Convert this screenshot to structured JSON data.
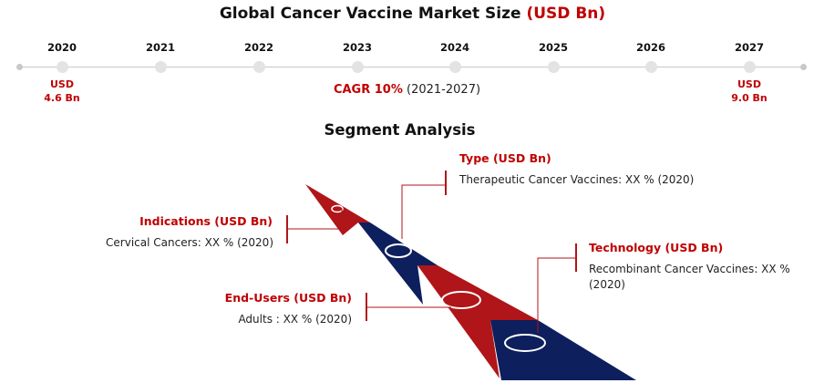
{
  "header": {
    "title_main": "Global Cancer Vaccine Market Size",
    "title_unit": "(USD Bn)"
  },
  "timeline": {
    "years": [
      "2020",
      "2021",
      "2022",
      "2023",
      "2024",
      "2025",
      "2026",
      "2027"
    ],
    "start_value_unit": "USD",
    "start_value": "4.6 Bn",
    "end_value_unit": "USD",
    "end_value": "9.0 Bn",
    "cagr_label": "CAGR 10%",
    "cagr_period": "(2021-2027)"
  },
  "segments": {
    "title": "Segment Analysis",
    "type": {
      "heading": "Type (USD Bn)",
      "text": "Therapeutic Cancer Vaccines: XX % (2020)"
    },
    "indications": {
      "heading": "Indications (USD Bn)",
      "text": "Cervical Cancers: XX % (2020)"
    },
    "technology": {
      "heading": "Technology (USD Bn)",
      "text": "Recombinant Cancer Vaccines: XX %",
      "text2": "(2020)"
    },
    "end_users": {
      "heading": "End-Users (USD Bn)",
      "text": "Adults : XX % (2020)"
    }
  },
  "colors": {
    "accent_red": "#c00000",
    "arrow_red": "#b01519",
    "arrow_navy": "#0d1f5c",
    "timeline_grey": "#c8c8c8"
  }
}
